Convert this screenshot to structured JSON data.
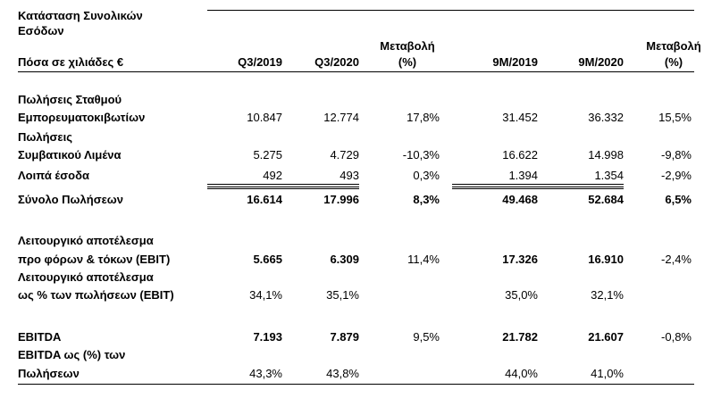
{
  "header": {
    "title_line1": "Κατάσταση Συνολικών",
    "title_line2": "Εσόδων",
    "title_line3": "Πόσα σε χιλιάδες €",
    "col_q3_2019": "Q3/2019",
    "col_q3_2020": "Q3/2020",
    "col_change_q_line1": "Μεταβολή",
    "col_change_q_line2": "(%)",
    "col_9m_2019": "9M/2019",
    "col_9m_2020": "9M/2020",
    "col_change_9m_line1": "Μεταβολή",
    "col_change_9m_line2": "(%)"
  },
  "rows": [
    {
      "label1": "Πωλήσεις Σταθμού",
      "label2": "Εμπορευματοκιβωτίων",
      "q3_2019": "10.847",
      "q3_2020": "12.774",
      "chg_q": "17,8%",
      "m9_2019": "31.452",
      "m9_2020": "36.332",
      "chg_9m": "15,5%"
    },
    {
      "label1": "Πωλήσεις",
      "label2": "Συμβατικού Λιμένα",
      "q3_2019": "5.275",
      "q3_2020": "4.729",
      "chg_q": "-10,3%",
      "m9_2019": "16.622",
      "m9_2020": "14.998",
      "chg_9m": "-9,8%"
    },
    {
      "label1": "Λοιπά έσοδα",
      "q3_2019": "492",
      "q3_2020": "493",
      "chg_q": "0,3%",
      "m9_2019": "1.394",
      "m9_2020": "1.354",
      "chg_9m": "-2,9%"
    },
    {
      "label1": "Σύνολο Πωλήσεων",
      "q3_2019": "16.614",
      "q3_2020": "17.996",
      "chg_q": "8,3%",
      "m9_2019": "49.468",
      "m9_2020": "52.684",
      "chg_9m": "6,5%"
    },
    {
      "label1": "Λειτουργικό αποτέλεσμα",
      "label2": "προ φόρων & τόκων (EBIT)",
      "q3_2019": "5.665",
      "q3_2020": "6.309",
      "chg_q": "11,4%",
      "m9_2019": "17.326",
      "m9_2020": "16.910",
      "chg_9m": "-2,4%"
    },
    {
      "label1": "Λειτουργικό αποτέλεσμα",
      "label2": "ως % των πωλήσεων (EBIT)",
      "q3_2019": "34,1%",
      "q3_2020": "35,1%",
      "m9_2019": "35,0%",
      "m9_2020": "32,1%"
    },
    {
      "label1": "EBITDA",
      "q3_2019": "7.193",
      "q3_2020": "7.879",
      "chg_q": "9,5%",
      "m9_2019": "21.782",
      "m9_2020": "21.607",
      "chg_9m": "-0,8%"
    },
    {
      "label1": "EBITDA ως (%) των",
      "label2": "Πωλήσεων",
      "q3_2019": "43,3%",
      "q3_2020": "43,8%",
      "m9_2019": "44,0%",
      "m9_2020": "41,0%"
    }
  ]
}
